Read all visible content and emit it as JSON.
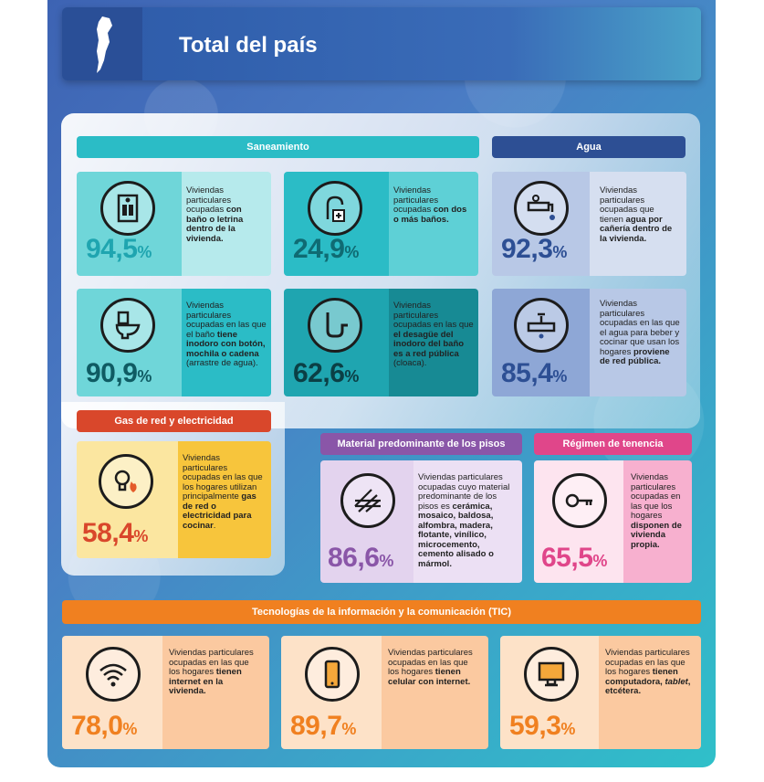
{
  "header": {
    "title": "Total del país"
  },
  "sections": {
    "saneamiento": "Saneamiento",
    "agua": "Agua",
    "gas": "Gas de red y electricidad",
    "pisos": "Material predominante de los pisos",
    "tenencia": "Régimen de tenencia",
    "tic": "Tecnologías de la información y la comunicación (TIC)"
  },
  "cards": {
    "bano": {
      "num": "94,5",
      "pct": "%",
      "d1": "Viviendas particulares ocupadas ",
      "b1": "con baño o letrina dentro de la vivienda.",
      "icon": "toilet-room-icon"
    },
    "dosbanos": {
      "num": "24,9",
      "pct": "%",
      "d1": "Viviendas particulares ocupadas ",
      "b1": "con dos o más baños.",
      "icon": "bathroom-plus-icon"
    },
    "agua_cañeria": {
      "num": "92,3",
      "pct": "%",
      "d1": "Viviendas particulares ocupadas que tienen ",
      "b1": "agua por cañería dentro de la vivienda.",
      "icon": "faucet-icon"
    },
    "inodoro": {
      "num": "90,9",
      "pct": "%",
      "d1": "Viviendas particulares ocupadas en las que el baño ",
      "b1": "tiene inodoro con botón, mochila o cadena",
      "d2": " (arrastre de agua).",
      "icon": "toilet-icon"
    },
    "cloaca": {
      "num": "62,6",
      "pct": "%",
      "d1": "Viviendas particulares ocupadas en las que ",
      "b1": "el desagüe del inodoro del baño es a red pública",
      "d2": " (cloaca).",
      "icon": "pipe-icon"
    },
    "agua_red": {
      "num": "85,4",
      "pct": "%",
      "d1": "Viviendas particulares ocupadas en las que el agua para beber y cocinar que usan los hogares ",
      "b1": "proviene de red pública.",
      "icon": "water-network-icon"
    },
    "gas": {
      "num": "58,4",
      "pct": "%",
      "d1": "Viviendas particulares ocupadas en las que los hogares utilizan principalmente ",
      "b1": "gas de red o electricidad para cocinar",
      "d2": ".",
      "icon": "bulb-flame-icon"
    },
    "pisos": {
      "num": "86,6",
      "pct": "%",
      "d1": "Viviendas particulares ocupadas cuyo material predominante de los pisos es ",
      "b1": "cerámica, mosaico, baldosa, alfombra, madera, flotante, vinílico, microcemento, cemento alisado o mármol.",
      "icon": "floor-icon"
    },
    "tenencia": {
      "num": "65,5",
      "pct": "%",
      "d1": "Viviendas particulares ocupadas en las que los hogares ",
      "b1": "disponen de vivienda propia.",
      "icon": "key-icon"
    },
    "internet": {
      "num": "78,0",
      "pct": "%",
      "d1": "Viviendas particulares ocupadas en las que los hogares ",
      "b1": "tienen internet en la vivienda.",
      "icon": "wifi-icon"
    },
    "celular": {
      "num": "89,7",
      "pct": "%",
      "d1": "Viviendas particulares ocupadas en las que los hogares ",
      "b1": "tienen celular con internet.",
      "icon": "phone-icon"
    },
    "computadora": {
      "num": "59,3",
      "pct": "%",
      "d1": "Viviendas particulares ocupadas en las que los hogares ",
      "b1": "tienen computadora, ",
      "i1": "tablet",
      "d2": ", etcétera.",
      "icon": "computer-icon"
    }
  },
  "colors": {
    "teal": "#2bbcc6",
    "navy": "#2d4f94",
    "orange": "#f08020",
    "red": "#d9472b",
    "purple": "#8a56a8",
    "pink": "#e0468a",
    "yellow": "#f7c53c"
  }
}
